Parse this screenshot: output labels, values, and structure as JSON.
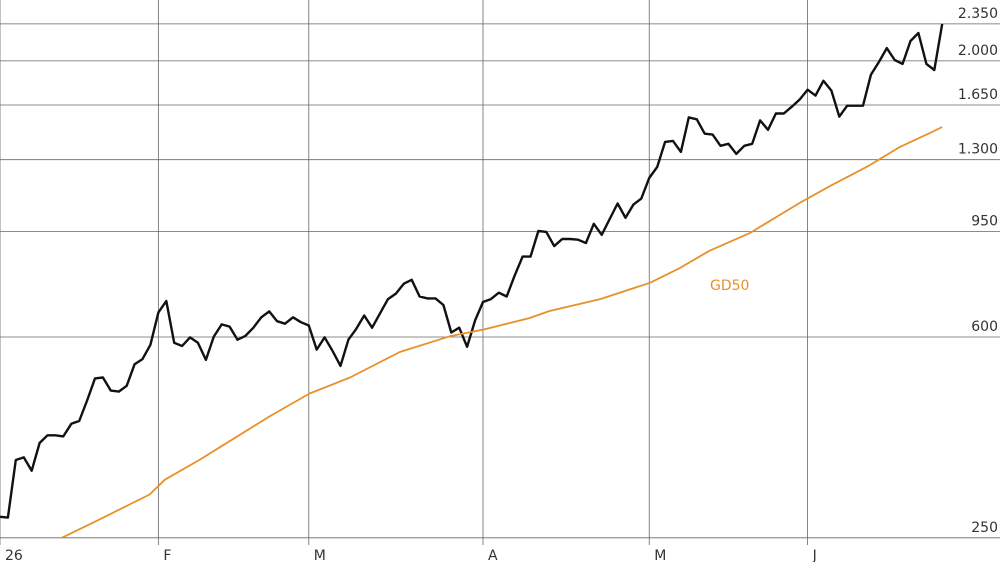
{
  "chart_data": {
    "type": "line",
    "log_scale": true,
    "grid": true,
    "xlim": [
      0,
      126.3
    ],
    "xticks": [
      {
        "value": 0,
        "label": "26"
      },
      {
        "value": 20,
        "label": "F"
      },
      {
        "value": 39,
        "label": "M"
      },
      {
        "value": 61,
        "label": "A"
      },
      {
        "value": 82,
        "label": "M"
      },
      {
        "value": 102,
        "label": "J"
      }
    ],
    "ylim": [
      225,
      2608
    ],
    "yticks": [
      250,
      600,
      950,
      {
        "value": 1300,
        "label": "1.300"
      },
      {
        "value": 1650,
        "label": "1.650"
      },
      {
        "value": 2000,
        "label": "2.000"
      },
      {
        "value": 2350,
        "label": "2.350"
      }
    ],
    "series": [
      {
        "color": "#111111",
        "x": [
          0,
          1,
          2,
          3,
          4,
          5,
          6,
          7,
          8,
          9,
          10,
          11,
          12,
          13,
          14,
          15,
          16,
          17,
          18,
          19,
          20,
          21,
          22,
          23,
          24,
          25,
          26,
          27,
          28,
          29,
          30,
          31,
          32,
          33,
          34,
          35,
          36,
          37,
          38,
          39,
          40,
          41,
          42,
          43,
          44,
          45,
          46,
          47,
          48,
          49,
          50,
          51,
          52,
          53,
          54,
          55,
          56,
          57,
          58,
          59,
          60,
          61,
          62,
          63,
          64,
          65,
          66,
          67,
          68,
          69,
          70,
          71,
          72,
          73,
          74,
          75,
          76,
          77,
          78,
          79,
          80,
          81,
          82,
          83,
          84,
          85,
          86,
          87,
          88,
          89,
          90,
          91,
          92,
          93,
          94,
          95,
          96,
          97,
          98,
          99,
          100,
          101,
          102,
          103,
          104,
          105,
          106,
          107,
          108,
          109,
          110,
          111,
          112,
          113,
          114,
          115,
          116,
          117,
          118,
          119
        ],
        "values": [
          274,
          273,
          351,
          355,
          335,
          378,
          391,
          391,
          389,
          411,
          416,
          455,
          501,
          503,
          475,
          473,
          485,
          533,
          545,
          580,
          668,
          702,
          585,
          577,
          599,
          585,
          543,
          601,
          634,
          628,
          593,
          603,
          625,
          654,
          671,
          643,
          636,
          654,
          640,
          631,
          568,
          599,
          565,
          529,
          593,
          622,
          659,
          625,
          665,
          708,
          725,
          757,
          770,
          716,
          710,
          710,
          690,
          612,
          625,
          575,
          645,
          699,
          708,
          728,
          716,
          784,
          852,
          852,
          953,
          949,
          892,
          920,
          920,
          917,
          904,
          983,
          937,
          1004,
          1074,
          1009,
          1069,
          1097,
          1200,
          1259,
          1405,
          1411,
          1345,
          1563,
          1550,
          1456,
          1450,
          1381,
          1393,
          1333,
          1381,
          1393,
          1543,
          1481,
          1590,
          1590,
          1638,
          1690,
          1764,
          1719,
          1834,
          1757,
          1569,
          1645,
          1645,
          1645,
          1882,
          1990,
          2115,
          2008,
          1974,
          2181,
          2259,
          1974,
          1922,
          2350
        ]
      },
      {
        "name": "GD50",
        "color": "#e8902a",
        "x": [
          7.8,
          12.6,
          18.9,
          20.8,
          25.3,
          29,
          34.1,
          39.1,
          44.2,
          50.5,
          56.8,
          61.1,
          66.9,
          69.4,
          75.8,
          82.1,
          85.9,
          89.6,
          94.7,
          101,
          104.8,
          109.8,
          113.6,
          117.4,
          119
        ],
        "values": [
          250,
          271,
          302,
          322,
          352,
          381,
          425,
          469,
          503,
          562,
          602,
          620,
          652,
          672,
          708,
          760,
          811,
          874,
          944,
          1077,
          1158,
          1268,
          1373,
          1459,
          1499
        ]
      }
    ]
  }
}
